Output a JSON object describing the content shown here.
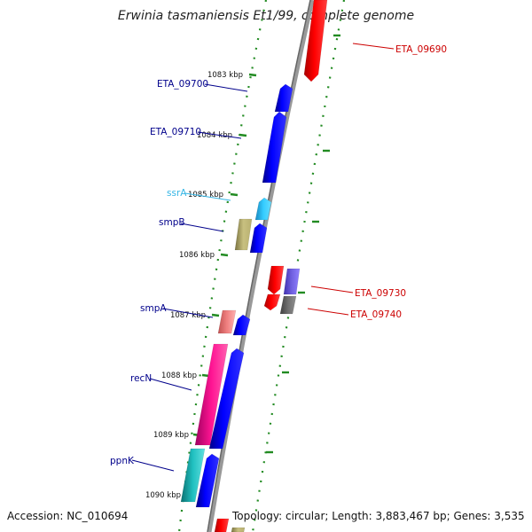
{
  "title": "Erwinia tasmaniensis Et1/99, complete genome",
  "footer": {
    "accession": "Accession: NC_010694",
    "summary": "Topology: circular; Length: 3,883,467 bp; Genes: 3,535"
  },
  "colors": {
    "backbone": "#808080",
    "tick": "#228b22",
    "forward_cds": "#0000ff",
    "reverse_cds": "#ff0000",
    "rna": "#33ccff",
    "pseudo": "#b8b070",
    "pink": "#ff1493",
    "salmon": "#f08080",
    "cyan": "#20c0c0",
    "lavender": "#7060e0",
    "darkgray": "#707070",
    "label_forward": "#00008b",
    "label_reverse": "#cc0000",
    "label_rna": "#33b5e5"
  },
  "scale": {
    "kbp_labels": [
      {
        "text": "1083 kbp",
        "kbp": 1083
      },
      {
        "text": "1084 kbp",
        "kbp": 1084
      },
      {
        "text": "1085 kbp",
        "kbp": 1085
      },
      {
        "text": "1086 kbp",
        "kbp": 1086
      },
      {
        "text": "1087 kbp",
        "kbp": 1087
      },
      {
        "text": "1088 kbp",
        "kbp": 1088
      },
      {
        "text": "1089 kbp",
        "kbp": 1089
      },
      {
        "text": "1090 kbp",
        "kbp": 1090
      }
    ]
  },
  "genes": [
    {
      "name": "ETA_09690",
      "strand": "reverse",
      "kind": "cds"
    },
    {
      "name": "ETA_09700",
      "strand": "forward",
      "kind": "cds"
    },
    {
      "name": "ETA_09710",
      "strand": "forward",
      "kind": "cds"
    },
    {
      "name": "ssrA",
      "strand": "forward",
      "kind": "rna"
    },
    {
      "name": "smpB",
      "strand": "forward",
      "kind": "cds"
    },
    {
      "name": "ETA_09730",
      "strand": "reverse",
      "kind": "cds"
    },
    {
      "name": "ETA_09740",
      "strand": "reverse",
      "kind": "cds"
    },
    {
      "name": "smpA",
      "strand": "forward",
      "kind": "cds"
    },
    {
      "name": "recN",
      "strand": "forward",
      "kind": "cds"
    },
    {
      "name": "ppnK",
      "strand": "forward",
      "kind": "cds"
    }
  ]
}
